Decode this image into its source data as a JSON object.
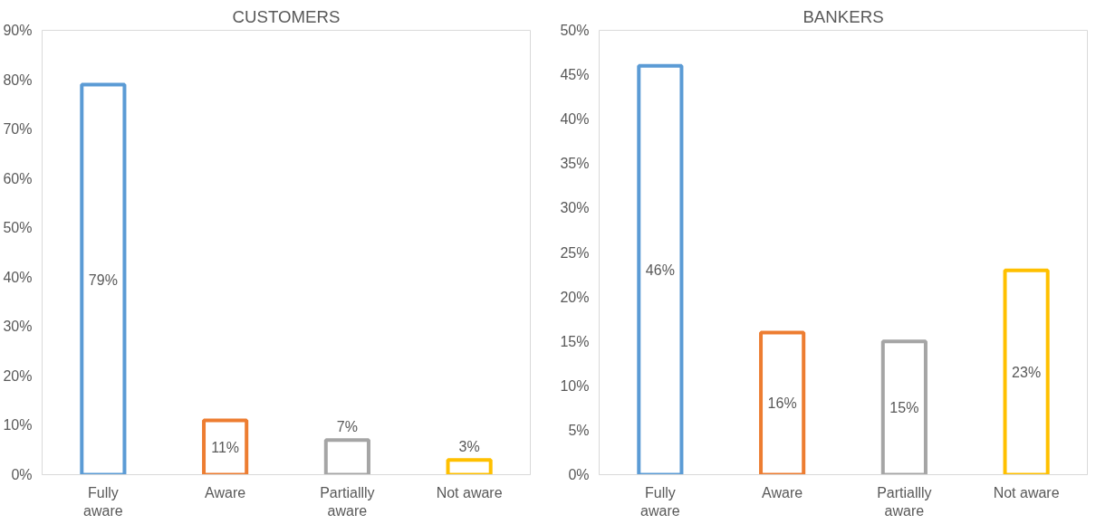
{
  "chart_data": [
    {
      "type": "bar",
      "title": "CUSTOMERS",
      "categories": [
        "Fully aware",
        "Aware",
        "Partiallly aware",
        "Not aware"
      ],
      "values": [
        79,
        11,
        7,
        3
      ],
      "colors": [
        "#5b9bd5",
        "#ed7d31",
        "#a5a5a5",
        "#ffc000"
      ],
      "ylim": [
        0,
        90
      ],
      "yticks": [
        {
          "value": 0,
          "label": "0%"
        },
        {
          "value": 10,
          "label": "10%"
        },
        {
          "value": 20,
          "label": "20%"
        },
        {
          "value": 30,
          "label": "30%"
        },
        {
          "value": 40,
          "label": "40%"
        },
        {
          "value": 50,
          "label": "50%"
        },
        {
          "value": 60,
          "label": "60%"
        },
        {
          "value": 70,
          "label": "70%"
        },
        {
          "value": 80,
          "label": "80%"
        },
        {
          "value": 90,
          "label": "90%"
        }
      ],
      "value_labels": [
        "79%",
        "11%",
        "7%",
        "3%"
      ],
      "grid": false
    },
    {
      "type": "bar",
      "title": "BANKERS",
      "categories": [
        "Fully aware",
        "Aware",
        "Partiallly aware",
        "Not aware"
      ],
      "values": [
        46,
        16,
        15,
        23
      ],
      "colors": [
        "#5b9bd5",
        "#ed7d31",
        "#a5a5a5",
        "#ffc000"
      ],
      "ylim": [
        0,
        50
      ],
      "yticks": [
        {
          "value": 0,
          "label": "0%"
        },
        {
          "value": 5,
          "label": "5%"
        },
        {
          "value": 10,
          "label": "10%"
        },
        {
          "value": 15,
          "label": "15%"
        },
        {
          "value": 20,
          "label": "20%"
        },
        {
          "value": 25,
          "label": "25%"
        },
        {
          "value": 30,
          "label": "30%"
        },
        {
          "value": 35,
          "label": "35%"
        },
        {
          "value": 40,
          "label": "40%"
        },
        {
          "value": 45,
          "label": "45%"
        },
        {
          "value": 50,
          "label": "50%"
        }
      ],
      "value_labels": [
        "46%",
        "16%",
        "15%",
        "23%"
      ],
      "grid": false
    }
  ]
}
